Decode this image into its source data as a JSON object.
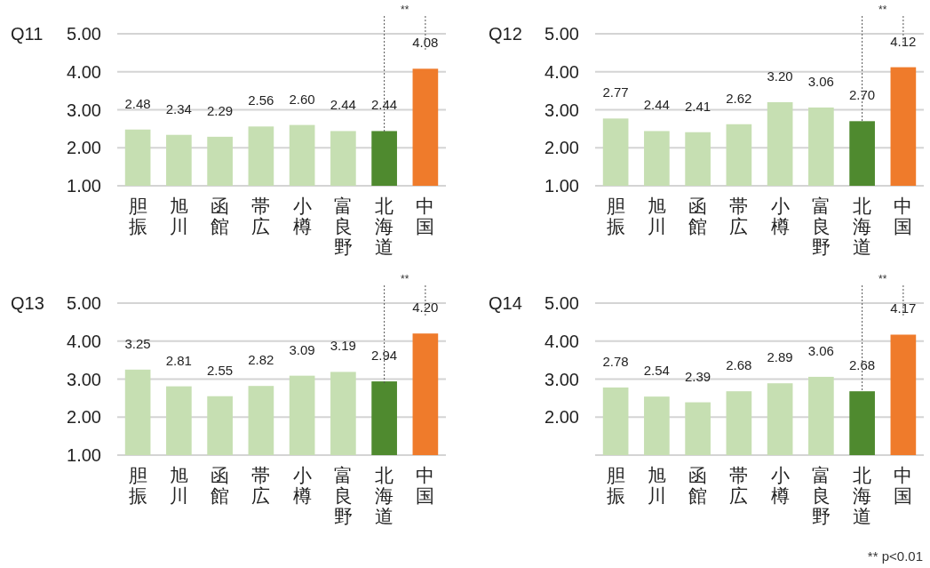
{
  "chart_data": [
    {
      "type": "bar",
      "title": "Q11",
      "categories": [
        "胆振",
        "旭川",
        "函館",
        "帯広",
        "小樽",
        "富良野",
        "北海道",
        "中国"
      ],
      "values": [
        2.48,
        2.34,
        2.29,
        2.56,
        2.6,
        2.44,
        2.44,
        4.08
      ],
      "value_labels": [
        "2.48",
        "2.34",
        "2.29",
        "2.56",
        "2.60",
        "2.44",
        "2.44",
        "4.08"
      ],
      "colors": [
        "#c6dfb2",
        "#c6dfb2",
        "#c6dfb2",
        "#c6dfb2",
        "#c6dfb2",
        "#c6dfb2",
        "#4f8a2f",
        "#ef7b2b"
      ],
      "ylim": [
        1,
        5
      ],
      "yticks": [
        {
          "value": 1,
          "label": "1.00"
        },
        {
          "value": 2,
          "label": "2.00"
        },
        {
          "value": 3,
          "label": "3.00"
        },
        {
          "value": 4,
          "label": "4.00"
        },
        {
          "value": 5,
          "label": "5.00"
        }
      ],
      "grid": "y",
      "annotations": [
        "**"
      ]
    },
    {
      "type": "bar",
      "title": "Q12",
      "categories": [
        "胆振",
        "旭川",
        "函館",
        "帯広",
        "小樽",
        "富良野",
        "北海道",
        "中国"
      ],
      "values": [
        2.77,
        2.44,
        2.41,
        2.62,
        3.2,
        3.06,
        2.7,
        4.12
      ],
      "value_labels": [
        "2.77",
        "2.44",
        "2.41",
        "2.62",
        "3.20",
        "3.06",
        "2.70",
        "4.12"
      ],
      "colors": [
        "#c6dfb2",
        "#c6dfb2",
        "#c6dfb2",
        "#c6dfb2",
        "#c6dfb2",
        "#c6dfb2",
        "#4f8a2f",
        "#ef7b2b"
      ],
      "ylim": [
        1,
        5
      ],
      "yticks": [
        {
          "value": 1,
          "label": "1.00"
        },
        {
          "value": 2,
          "label": "2.00"
        },
        {
          "value": 3,
          "label": "3.00"
        },
        {
          "value": 4,
          "label": "4.00"
        },
        {
          "value": 5,
          "label": "5.00"
        }
      ],
      "grid": "y",
      "annotations": [
        "**"
      ]
    },
    {
      "type": "bar",
      "title": "Q13",
      "categories": [
        "胆振",
        "旭川",
        "函館",
        "帯広",
        "小樽",
        "富良野",
        "北海道",
        "中国"
      ],
      "values": [
        3.25,
        2.81,
        2.55,
        2.82,
        3.09,
        3.19,
        2.94,
        4.2
      ],
      "value_labels": [
        "3.25",
        "2.81",
        "2.55",
        "2.82",
        "3.09",
        "3.19",
        "2.94",
        "4.20"
      ],
      "colors": [
        "#c6dfb2",
        "#c6dfb2",
        "#c6dfb2",
        "#c6dfb2",
        "#c6dfb2",
        "#c6dfb2",
        "#4f8a2f",
        "#ef7b2b"
      ],
      "ylim": [
        1,
        5
      ],
      "yticks": [
        {
          "value": 1,
          "label": "1.00"
        },
        {
          "value": 2,
          "label": "2.00"
        },
        {
          "value": 3,
          "label": "3.00"
        },
        {
          "value": 4,
          "label": "4.00"
        },
        {
          "value": 5,
          "label": "5.00"
        }
      ],
      "grid": "y",
      "annotations": [
        "**"
      ]
    },
    {
      "type": "bar",
      "title": "Q14",
      "categories": [
        "胆振",
        "旭川",
        "函館",
        "帯広",
        "小樽",
        "富良野",
        "北海道",
        "中国"
      ],
      "values": [
        2.78,
        2.54,
        2.39,
        2.68,
        2.89,
        3.06,
        2.68,
        4.17
      ],
      "value_labels": [
        "2.78",
        "2.54",
        "2.39",
        "2.68",
        "2.89",
        "3.06",
        "2.68",
        "4.17"
      ],
      "colors": [
        "#c6dfb2",
        "#c6dfb2",
        "#c6dfb2",
        "#c6dfb2",
        "#c6dfb2",
        "#c6dfb2",
        "#4f8a2f",
        "#ef7b2b"
      ],
      "ylim": [
        1,
        5
      ],
      "yticks": [
        {
          "value": 2,
          "label": "2.00"
        },
        {
          "value": 3,
          "label": "3.00"
        },
        {
          "value": 4,
          "label": "4.00"
        },
        {
          "value": 5,
          "label": "5.00"
        }
      ],
      "grid": "y",
      "annotations": [
        "**",
        "** p<0.01"
      ]
    }
  ]
}
